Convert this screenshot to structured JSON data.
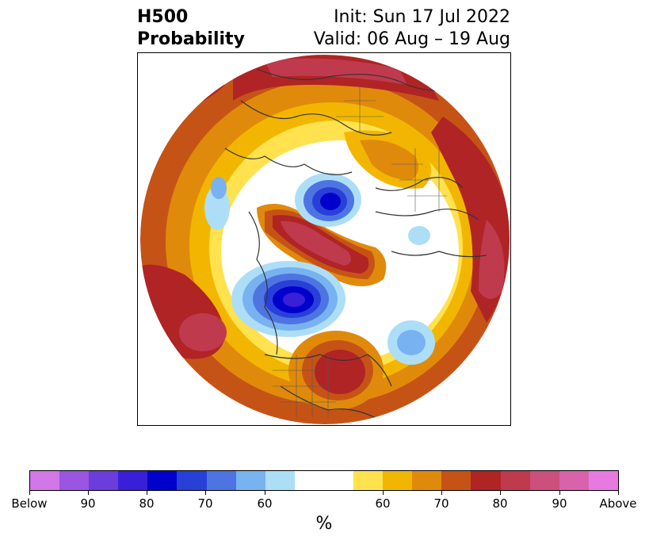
{
  "title": {
    "variable": "H500",
    "product": "Probability",
    "init": "Init: Sun 17 Jul 2022",
    "valid": "Valid: 06 Aug – 19 Aug"
  },
  "colorbar": {
    "unit": "%",
    "colors": [
      "#d376e7",
      "#9a56e0",
      "#6a3ddc",
      "#3a1fd8",
      "#0000cc",
      "#2840d8",
      "#4e74e2",
      "#78b2f0",
      "#addef8",
      "#ffffff",
      "#ffffff",
      "#ffe24e",
      "#f2b600",
      "#e08a0c",
      "#c65316",
      "#b02426",
      "#c03a4e",
      "#cc4f7c",
      "#d862ac",
      "#e77ae0"
    ],
    "tick_labels": [
      "Below",
      "90",
      "80",
      "70",
      "60",
      "60",
      "70",
      "80",
      "90",
      "Above"
    ]
  },
  "map": {
    "projection": "north-polar-stereographic",
    "features": [
      "below-normal-heights-canada",
      "below-normal-heights-barents",
      "above-normal-heights-central-us",
      "above-normal-heights-greenland",
      "above-normal-heights-north-pacific"
    ]
  }
}
